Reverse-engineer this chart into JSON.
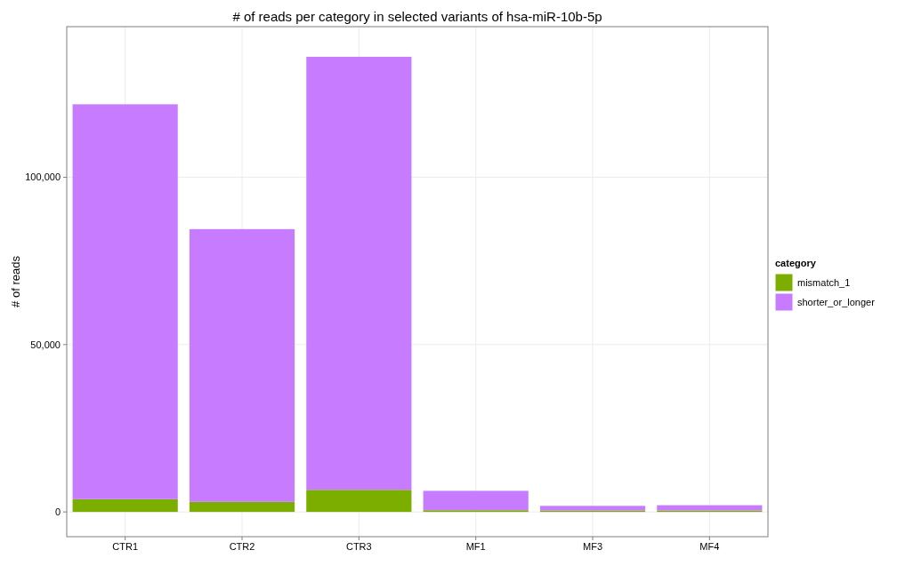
{
  "chart_data": {
    "type": "bar",
    "title": "# of reads per category in selected variants of hsa-miR-10b-5p",
    "ylabel": "# of reads",
    "legend_title": "category",
    "categories": [
      "CTR1",
      "CTR2",
      "CTR3",
      "MF1",
      "MF3",
      "MF4"
    ],
    "stacked": true,
    "series": [
      {
        "name": "mismatch_1",
        "color": "#7cae00",
        "values": [
          3800,
          3000,
          6600,
          500,
          400,
          400
        ]
      },
      {
        "name": "shorter_or_longer",
        "color": "#c77cff",
        "values": [
          118000,
          81500,
          129400,
          5800,
          1400,
          1600
        ]
      }
    ],
    "ylim": [
      -7400,
      145000
    ],
    "yticks": [
      0,
      {
        "value": 50000,
        "label": "50,000"
      },
      {
        "value": 100000,
        "label": "100,000"
      }
    ],
    "grid": true,
    "legend": "right"
  }
}
